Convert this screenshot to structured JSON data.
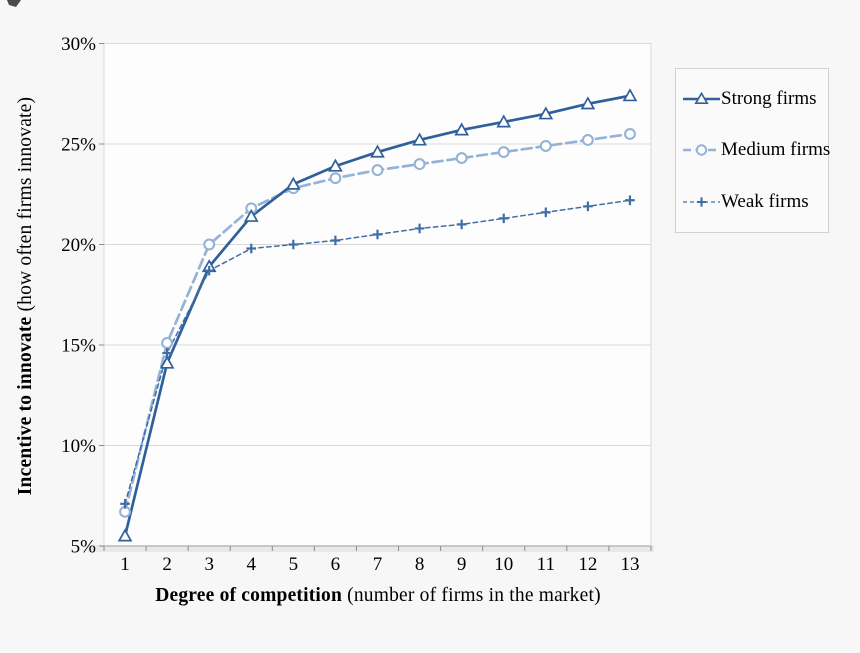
{
  "chart_data": {
    "type": "line",
    "title": "",
    "x_axis": {
      "title_bold": "Degree of competition",
      "title_rest": " (number of firms in the market)",
      "categories": [
        "1",
        "2",
        "3",
        "4",
        "5",
        "6",
        "7",
        "8",
        "9",
        "10",
        "11",
        "12",
        "13"
      ]
    },
    "y_axis": {
      "title_bold": "Incentive to innovate",
      "title_rest": " (how often firms innovate)",
      "min": 5,
      "max": 30,
      "step": 5,
      "tick_labels": [
        "5%",
        "10%",
        "15%",
        "20%",
        "25%",
        "30%"
      ]
    },
    "grid": true,
    "legend_position": "right",
    "series": [
      {
        "name": "Strong firms",
        "color": "#30609B",
        "line_style": "solid",
        "marker": "triangle",
        "values": [
          5.5,
          14.1,
          18.9,
          21.4,
          23.0,
          23.9,
          24.6,
          25.2,
          25.7,
          26.1,
          26.5,
          27.0,
          27.4
        ]
      },
      {
        "name": "Medium firms",
        "color": "#95B3D7",
        "line_style": "dashed",
        "marker": "circle",
        "values": [
          6.7,
          15.1,
          20.0,
          21.8,
          22.8,
          23.3,
          23.7,
          24.0,
          24.3,
          24.6,
          24.9,
          25.2,
          25.5
        ]
      },
      {
        "name": "Weak firms",
        "color": "#3F6DA5",
        "line_style": "short-dash",
        "marker": "plus",
        "values": [
          7.1,
          14.6,
          18.7,
          19.8,
          20.0,
          20.2,
          20.5,
          20.8,
          21.0,
          21.3,
          21.6,
          21.9,
          22.2
        ]
      }
    ]
  }
}
